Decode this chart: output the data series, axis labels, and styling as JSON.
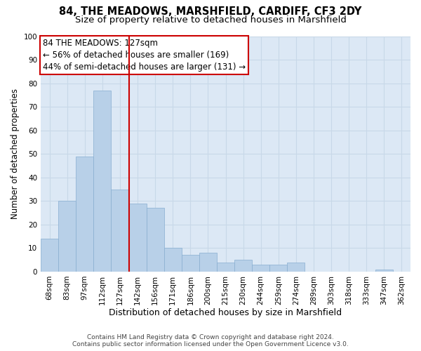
{
  "title": "84, THE MEADOWS, MARSHFIELD, CARDIFF, CF3 2DY",
  "subtitle": "Size of property relative to detached houses in Marshfield",
  "xlabel": "Distribution of detached houses by size in Marshfield",
  "ylabel": "Number of detached properties",
  "categories": [
    "68sqm",
    "83sqm",
    "97sqm",
    "112sqm",
    "127sqm",
    "142sqm",
    "156sqm",
    "171sqm",
    "186sqm",
    "200sqm",
    "215sqm",
    "230sqm",
    "244sqm",
    "259sqm",
    "274sqm",
    "289sqm",
    "303sqm",
    "318sqm",
    "333sqm",
    "347sqm",
    "362sqm"
  ],
  "values": [
    14,
    30,
    49,
    77,
    35,
    29,
    27,
    10,
    7,
    8,
    4,
    5,
    3,
    3,
    4,
    0,
    0,
    0,
    0,
    1,
    0
  ],
  "bar_color": "#b8d0e8",
  "bar_edge_color": "#88aed0",
  "vline_x": 4.5,
  "vline_color": "#cc0000",
  "annotation_line1": "84 THE MEADOWS: 127sqm",
  "annotation_line2": "← 56% of detached houses are smaller (169)",
  "annotation_line3": "44% of semi-detached houses are larger (131) →",
  "annotation_box_color": "#cc0000",
  "annotation_box_bg": "#ffffff",
  "ylim": [
    0,
    100
  ],
  "yticks": [
    0,
    10,
    20,
    30,
    40,
    50,
    60,
    70,
    80,
    90,
    100
  ],
  "grid_color": "#c8d8e8",
  "background_color": "#dce8f5",
  "footer_line1": "Contains HM Land Registry data © Crown copyright and database right 2024.",
  "footer_line2": "Contains public sector information licensed under the Open Government Licence v3.0.",
  "title_fontsize": 10.5,
  "subtitle_fontsize": 9.5,
  "xlabel_fontsize": 9,
  "ylabel_fontsize": 8.5,
  "tick_fontsize": 7.5,
  "annotation_fontsize": 8.5,
  "footer_fontsize": 6.5
}
